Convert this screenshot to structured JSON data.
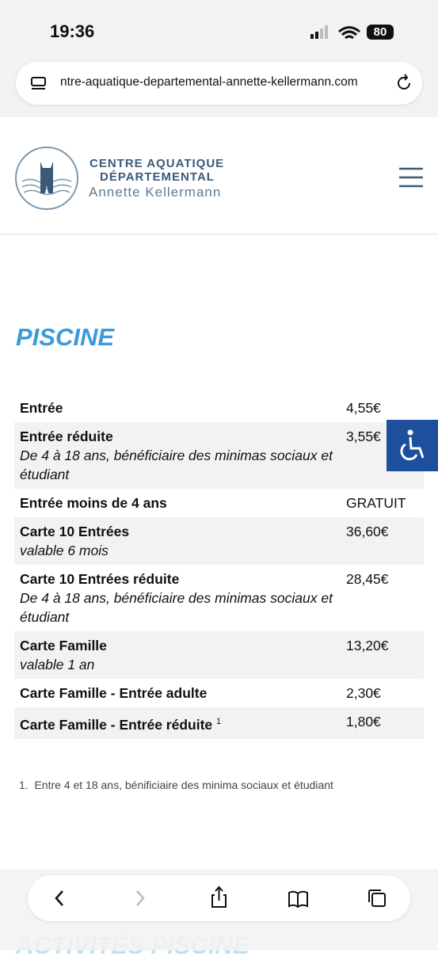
{
  "status_bar": {
    "time": "19:36",
    "battery": "80"
  },
  "address_bar": {
    "url": "ntre-aquatique-departemental-annette-kellermann.com"
  },
  "header": {
    "logo_line1": "CENTRE AQUATIQUE",
    "logo_line2": "DÉPARTEMENTAL",
    "logo_line3": "Annette Kellermann"
  },
  "section": {
    "title": "PISCINE",
    "table": {
      "rows": [
        {
          "name": "Entrée",
          "price": "4,55€"
        },
        {
          "name": "Entrée réduite",
          "note": "De 4 à 18 ans, bénéficiaire des minimas sociaux et étudiant",
          "price": "3,55€"
        },
        {
          "name": "Entrée moins de 4 ans",
          "price": "GRATUIT"
        },
        {
          "name": "Carte 10 Entrées",
          "note": "valable 6 mois",
          "price": "36,60€"
        },
        {
          "name": "Carte 10 Entrées réduite",
          "note": "De 4 à 18 ans, bénéficiaire des minimas sociaux et étudiant",
          "price": "28,45€"
        },
        {
          "name": "Carte Famille",
          "note": "valable 1 an",
          "price": "13,20€"
        },
        {
          "name": "Carte Famille - Entrée adulte",
          "price": "2,30€"
        },
        {
          "name": "Carte Famille - Entrée réduite",
          "sup": "1",
          "price": "1,80€"
        }
      ]
    },
    "footnote": {
      "marker": "1.",
      "text": "Entre 4 et 18 ans, bénificiaire des minima sociaux et étudiant"
    }
  },
  "next_section": {
    "title": "ACTIVITÉS PISCINE"
  }
}
